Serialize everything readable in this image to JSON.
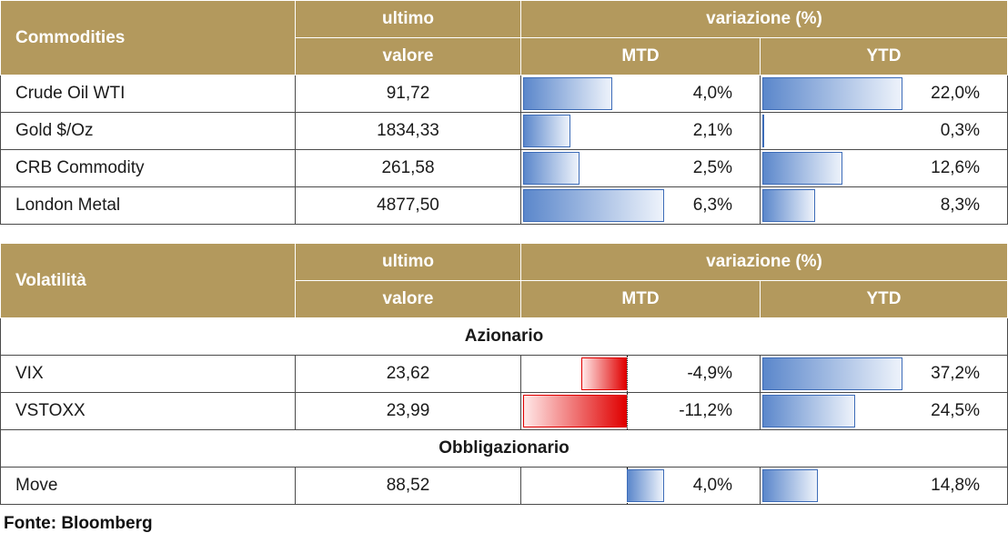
{
  "commodities": {
    "header": {
      "name": "Commodities",
      "last1": "ultimo",
      "last2": "valore",
      "change": "variazione (%)",
      "mtd": "MTD",
      "ytd": "YTD"
    },
    "rows": [
      {
        "name": "Crude Oil WTI",
        "value": "91,72",
        "mtd": "4,0%",
        "mtd_num": 4.0,
        "ytd": "22,0%",
        "ytd_num": 22.0
      },
      {
        "name": "Gold $/Oz",
        "value": "1834,33",
        "mtd": "2,1%",
        "mtd_num": 2.1,
        "ytd": "0,3%",
        "ytd_num": 0.3
      },
      {
        "name": "CRB Commodity",
        "value": "261,58",
        "mtd": "2,5%",
        "mtd_num": 2.5,
        "ytd": "12,6%",
        "ytd_num": 12.6
      },
      {
        "name": "London Metal",
        "value": "4877,50",
        "mtd": "6,3%",
        "mtd_num": 6.3,
        "ytd": "8,3%",
        "ytd_num": 8.3
      }
    ]
  },
  "volatility": {
    "header": {
      "name": "Volatilità",
      "last1": "ultimo",
      "last2": "valore",
      "change": "variazione (%)",
      "mtd": "MTD",
      "ytd": "YTD"
    },
    "section_equity": "Azionario",
    "section_bond": "Obbligazionario",
    "equity_rows": [
      {
        "name": "VIX",
        "value": "23,62",
        "mtd": "-4,9%",
        "mtd_num": -4.9,
        "ytd": "37,2%",
        "ytd_num": 37.2
      },
      {
        "name": "VSTOXX",
        "value": "23,99",
        "mtd": "-11,2%",
        "mtd_num": -11.2,
        "ytd": "24,5%",
        "ytd_num": 24.5
      }
    ],
    "bond_rows": [
      {
        "name": "Move",
        "value": "88,52",
        "mtd": "4,0%",
        "mtd_num": 4.0,
        "ytd": "14,8%",
        "ytd_num": 14.8
      }
    ]
  },
  "source": "Fonte: Bloomberg",
  "colors": {
    "header_bg": "#b3995d",
    "positive_bar": "#5b87cb",
    "negative_bar": "#e00000"
  }
}
